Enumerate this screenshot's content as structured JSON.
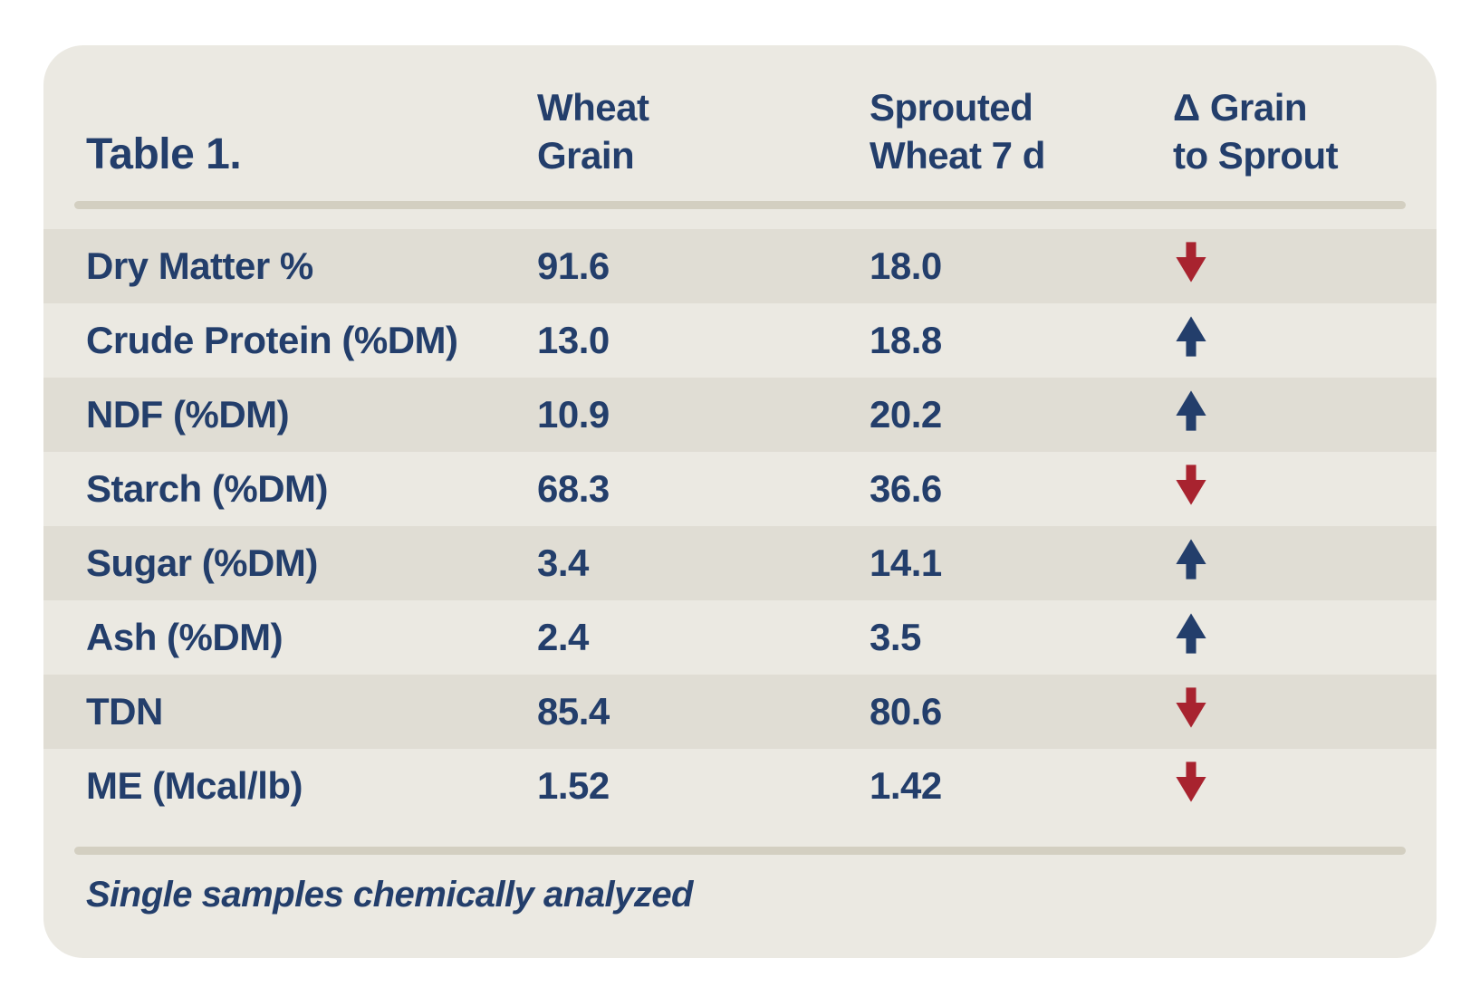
{
  "colors": {
    "pageBg": "#ffffff",
    "cardBg": "#ebe9e2",
    "stripe": "#e0ddd4",
    "rule": "#d3cfc1",
    "navy": "#233e6b",
    "red": "#a8232f"
  },
  "table": {
    "title": "Table 1.",
    "columns": [
      {
        "line1": "Wheat",
        "line2": "Grain"
      },
      {
        "line1": "Sprouted",
        "line2": "Wheat 7 d"
      },
      {
        "line1": "Δ Grain",
        "line2": "to Sprout"
      }
    ],
    "rows": [
      {
        "label": "Dry Matter %",
        "wheat_grain": "91.6",
        "sprouted_wheat_7d": "18.0",
        "change": "down"
      },
      {
        "label": "Crude Protein (%DM)",
        "wheat_grain": "13.0",
        "sprouted_wheat_7d": "18.8",
        "change": "up"
      },
      {
        "label": "NDF (%DM)",
        "wheat_grain": "10.9",
        "sprouted_wheat_7d": "20.2",
        "change": "up"
      },
      {
        "label": "Starch (%DM)",
        "wheat_grain": "68.3",
        "sprouted_wheat_7d": "36.6",
        "change": "down"
      },
      {
        "label": "Sugar (%DM)",
        "wheat_grain": "3.4",
        "sprouted_wheat_7d": "14.1",
        "change": "up"
      },
      {
        "label": "Ash (%DM)",
        "wheat_grain": "2.4",
        "sprouted_wheat_7d": "3.5",
        "change": "up"
      },
      {
        "label": "TDN",
        "wheat_grain": "85.4",
        "sprouted_wheat_7d": "80.6",
        "change": "down"
      },
      {
        "label": "ME (Mcal/lb)",
        "wheat_grain": "1.52",
        "sprouted_wheat_7d": "1.42",
        "change": "down"
      }
    ],
    "footnote": "Single samples chemically analyzed"
  },
  "chart_data": {
    "type": "table",
    "title": "Table 1.",
    "columns": [
      "",
      "Wheat Grain",
      "Sprouted Wheat 7 d",
      "Δ Grain to Sprout"
    ],
    "rows": [
      [
        "Dry Matter %",
        91.6,
        18.0,
        "decrease"
      ],
      [
        "Crude Protein (%DM)",
        13.0,
        18.8,
        "increase"
      ],
      [
        "NDF (%DM)",
        10.9,
        20.2,
        "increase"
      ],
      [
        "Starch (%DM)",
        68.3,
        36.6,
        "decrease"
      ],
      [
        "Sugar (%DM)",
        3.4,
        14.1,
        "increase"
      ],
      [
        "Ash (%DM)",
        2.4,
        3.5,
        "increase"
      ],
      [
        "TDN",
        85.4,
        80.6,
        "decrease"
      ],
      [
        "ME (Mcal/lb)",
        1.52,
        1.42,
        "decrease"
      ]
    ],
    "footnote": "Single samples chemically analyzed"
  }
}
